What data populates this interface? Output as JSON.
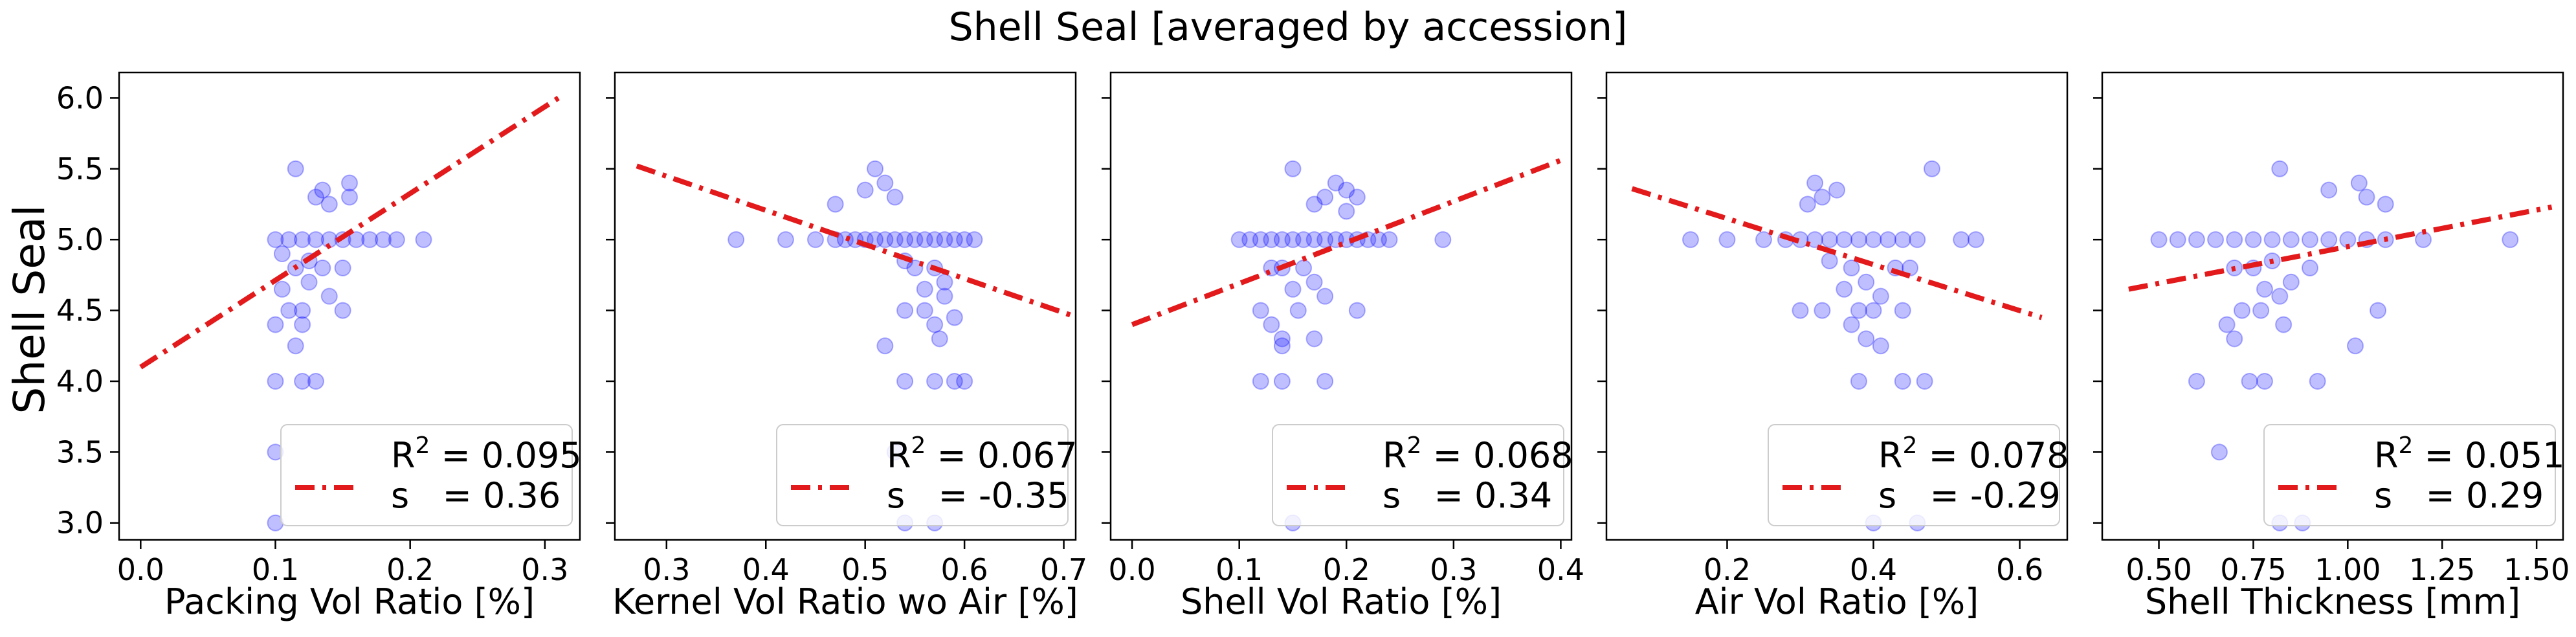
{
  "chart_data": {
    "title": "Shell Seal [averaged by accession]",
    "ylabel": "Shell Seal",
    "ylim": [
      2.88,
      6.18
    ],
    "yticks": [
      3.0,
      3.5,
      4.0,
      4.5,
      5.0,
      5.5,
      6.0
    ],
    "ytick_labels": [
      "3.0",
      "3.5",
      "4.0",
      "4.5",
      "5.0",
      "5.5",
      "6.0"
    ],
    "point_color": "#0000ff",
    "line_color": "#e31a1c",
    "panels": [
      {
        "type": "scatter",
        "xlabel": "Packing Vol Ratio [%]",
        "xlim": [
          -0.016,
          0.326
        ],
        "xticks": [
          0.0,
          0.1,
          0.2,
          0.3
        ],
        "xtick_labels": [
          "0.0",
          "0.1",
          "0.2",
          "0.3"
        ],
        "points": [
          [
            0.1,
            5.0
          ],
          [
            0.11,
            5.0
          ],
          [
            0.12,
            5.0
          ],
          [
            0.13,
            5.0
          ],
          [
            0.14,
            5.0
          ],
          [
            0.15,
            5.0
          ],
          [
            0.16,
            5.0
          ],
          [
            0.17,
            5.0
          ],
          [
            0.18,
            5.0
          ],
          [
            0.19,
            5.0
          ],
          [
            0.21,
            5.0
          ],
          [
            0.115,
            5.5
          ],
          [
            0.155,
            5.4
          ],
          [
            0.155,
            5.3
          ],
          [
            0.135,
            5.35
          ],
          [
            0.14,
            5.25
          ],
          [
            0.13,
            5.3
          ],
          [
            0.105,
            4.9
          ],
          [
            0.125,
            4.85
          ],
          [
            0.135,
            4.8
          ],
          [
            0.115,
            4.8
          ],
          [
            0.15,
            4.8
          ],
          [
            0.105,
            4.65
          ],
          [
            0.125,
            4.7
          ],
          [
            0.14,
            4.6
          ],
          [
            0.11,
            4.5
          ],
          [
            0.12,
            4.5
          ],
          [
            0.15,
            4.5
          ],
          [
            0.12,
            4.4
          ],
          [
            0.1,
            4.4
          ],
          [
            0.115,
            4.25
          ],
          [
            0.1,
            4.0
          ],
          [
            0.12,
            4.0
          ],
          [
            0.13,
            4.0
          ],
          [
            0.1,
            3.5
          ],
          [
            0.1,
            3.0
          ]
        ],
        "fit": [
          [
            0.0,
            4.1
          ],
          [
            0.31,
            6.0
          ]
        ],
        "legend": {
          "r2_text": "= 0.095",
          "s_text": "s   = 0.36"
        }
      },
      {
        "type": "scatter",
        "xlabel": "Kernel Vol Ratio wo Air [%]",
        "xlim": [
          0.248,
          0.712
        ],
        "xticks": [
          0.3,
          0.4,
          0.5,
          0.6,
          0.7
        ],
        "xtick_labels": [
          "0.3",
          "0.4",
          "0.5",
          "0.6",
          "0.7"
        ],
        "points": [
          [
            0.37,
            5.0
          ],
          [
            0.42,
            5.0
          ],
          [
            0.45,
            5.0
          ],
          [
            0.47,
            5.0
          ],
          [
            0.48,
            5.0
          ],
          [
            0.49,
            5.0
          ],
          [
            0.5,
            5.0
          ],
          [
            0.51,
            5.0
          ],
          [
            0.52,
            5.0
          ],
          [
            0.53,
            5.0
          ],
          [
            0.54,
            5.0
          ],
          [
            0.55,
            5.0
          ],
          [
            0.56,
            5.0
          ],
          [
            0.57,
            5.0
          ],
          [
            0.58,
            5.0
          ],
          [
            0.59,
            5.0
          ],
          [
            0.6,
            5.0
          ],
          [
            0.61,
            5.0
          ],
          [
            0.51,
            5.5
          ],
          [
            0.52,
            5.4
          ],
          [
            0.53,
            5.3
          ],
          [
            0.5,
            5.35
          ],
          [
            0.47,
            5.25
          ],
          [
            0.54,
            4.85
          ],
          [
            0.55,
            4.8
          ],
          [
            0.57,
            4.8
          ],
          [
            0.58,
            4.7
          ],
          [
            0.56,
            4.65
          ],
          [
            0.58,
            4.6
          ],
          [
            0.54,
            4.5
          ],
          [
            0.56,
            4.5
          ],
          [
            0.59,
            4.45
          ],
          [
            0.57,
            4.4
          ],
          [
            0.52,
            4.25
          ],
          [
            0.575,
            4.3
          ],
          [
            0.54,
            4.0
          ],
          [
            0.57,
            4.0
          ],
          [
            0.59,
            4.0
          ],
          [
            0.6,
            4.0
          ],
          [
            0.53,
            3.5
          ],
          [
            0.54,
            3.0
          ],
          [
            0.57,
            3.0
          ]
        ],
        "fit": [
          [
            0.27,
            5.52
          ],
          [
            0.71,
            4.46
          ]
        ],
        "legend": {
          "r2_text": "= 0.067",
          "s_text": "s   = -0.35"
        }
      },
      {
        "type": "scatter",
        "xlabel": "Shell Vol Ratio [%]",
        "xlim": [
          -0.02,
          0.41
        ],
        "xticks": [
          0.0,
          0.1,
          0.2,
          0.3,
          0.4
        ],
        "xtick_labels": [
          "0.0",
          "0.1",
          "0.2",
          "0.3",
          "0.4"
        ],
        "points": [
          [
            0.1,
            5.0
          ],
          [
            0.11,
            5.0
          ],
          [
            0.12,
            5.0
          ],
          [
            0.13,
            5.0
          ],
          [
            0.14,
            5.0
          ],
          [
            0.15,
            5.0
          ],
          [
            0.16,
            5.0
          ],
          [
            0.17,
            5.0
          ],
          [
            0.18,
            5.0
          ],
          [
            0.19,
            5.0
          ],
          [
            0.2,
            5.0
          ],
          [
            0.21,
            5.0
          ],
          [
            0.22,
            5.0
          ],
          [
            0.23,
            5.0
          ],
          [
            0.24,
            5.0
          ],
          [
            0.29,
            5.0
          ],
          [
            0.15,
            5.5
          ],
          [
            0.19,
            5.4
          ],
          [
            0.18,
            5.3
          ],
          [
            0.2,
            5.35
          ],
          [
            0.21,
            5.3
          ],
          [
            0.17,
            5.25
          ],
          [
            0.2,
            5.2
          ],
          [
            0.13,
            4.8
          ],
          [
            0.14,
            4.8
          ],
          [
            0.16,
            4.8
          ],
          [
            0.17,
            4.7
          ],
          [
            0.15,
            4.65
          ],
          [
            0.18,
            4.6
          ],
          [
            0.12,
            4.5
          ],
          [
            0.155,
            4.5
          ],
          [
            0.21,
            4.5
          ],
          [
            0.13,
            4.4
          ],
          [
            0.14,
            4.3
          ],
          [
            0.14,
            4.25
          ],
          [
            0.17,
            4.3
          ],
          [
            0.12,
            4.0
          ],
          [
            0.14,
            4.0
          ],
          [
            0.18,
            4.0
          ],
          [
            0.15,
            3.0
          ]
        ],
        "fit": [
          [
            0.0,
            4.4
          ],
          [
            0.4,
            5.56
          ]
        ],
        "legend": {
          "r2_text": "= 0.068",
          "s_text": "s   = 0.34"
        }
      },
      {
        "type": "scatter",
        "xlabel": "Air Vol Ratio [%]",
        "xlim": [
          0.035,
          0.665
        ],
        "xticks": [
          0.2,
          0.4,
          0.6
        ],
        "xtick_labels": [
          "0.2",
          "0.4",
          "0.6"
        ],
        "points": [
          [
            0.15,
            5.0
          ],
          [
            0.2,
            5.0
          ],
          [
            0.25,
            5.0
          ],
          [
            0.28,
            5.0
          ],
          [
            0.3,
            5.0
          ],
          [
            0.32,
            5.0
          ],
          [
            0.34,
            5.0
          ],
          [
            0.36,
            5.0
          ],
          [
            0.38,
            5.0
          ],
          [
            0.4,
            5.0
          ],
          [
            0.42,
            5.0
          ],
          [
            0.44,
            5.0
          ],
          [
            0.46,
            5.0
          ],
          [
            0.52,
            5.0
          ],
          [
            0.54,
            5.0
          ],
          [
            0.32,
            5.4
          ],
          [
            0.33,
            5.3
          ],
          [
            0.35,
            5.35
          ],
          [
            0.31,
            5.25
          ],
          [
            0.48,
            5.5
          ],
          [
            0.34,
            4.85
          ],
          [
            0.37,
            4.8
          ],
          [
            0.43,
            4.8
          ],
          [
            0.45,
            4.8
          ],
          [
            0.39,
            4.7
          ],
          [
            0.36,
            4.65
          ],
          [
            0.41,
            4.6
          ],
          [
            0.3,
            4.5
          ],
          [
            0.33,
            4.5
          ],
          [
            0.38,
            4.5
          ],
          [
            0.4,
            4.5
          ],
          [
            0.44,
            4.5
          ],
          [
            0.37,
            4.4
          ],
          [
            0.39,
            4.3
          ],
          [
            0.41,
            4.25
          ],
          [
            0.38,
            4.0
          ],
          [
            0.44,
            4.0
          ],
          [
            0.47,
            4.0
          ],
          [
            0.4,
            3.0
          ],
          [
            0.46,
            3.0
          ]
        ],
        "fit": [
          [
            0.07,
            5.36
          ],
          [
            0.63,
            4.45
          ]
        ],
        "legend": {
          "r2_text": "= 0.078",
          "s_text": "s   = -0.29"
        }
      },
      {
        "type": "scatter",
        "xlabel": "Shell Thickness [mm]",
        "xlim": [
          0.35,
          1.57
        ],
        "xticks": [
          0.5,
          0.75,
          1.0,
          1.25,
          1.5
        ],
        "xtick_labels": [
          "0.50",
          "0.75",
          "1.00",
          "1.25",
          "1.50"
        ],
        "points": [
          [
            0.5,
            5.0
          ],
          [
            0.55,
            5.0
          ],
          [
            0.6,
            5.0
          ],
          [
            0.65,
            5.0
          ],
          [
            0.7,
            5.0
          ],
          [
            0.75,
            5.0
          ],
          [
            0.8,
            5.0
          ],
          [
            0.85,
            5.0
          ],
          [
            0.9,
            5.0
          ],
          [
            0.95,
            5.0
          ],
          [
            1.0,
            5.0
          ],
          [
            1.05,
            5.0
          ],
          [
            1.1,
            5.0
          ],
          [
            1.2,
            5.0
          ],
          [
            1.43,
            5.0
          ],
          [
            0.82,
            5.5
          ],
          [
            1.03,
            5.4
          ],
          [
            0.95,
            5.35
          ],
          [
            1.05,
            5.3
          ],
          [
            1.1,
            5.25
          ],
          [
            0.8,
            4.85
          ],
          [
            0.7,
            4.8
          ],
          [
            0.75,
            4.8
          ],
          [
            0.85,
            4.7
          ],
          [
            0.9,
            4.8
          ],
          [
            0.78,
            4.65
          ],
          [
            0.82,
            4.6
          ],
          [
            0.72,
            4.5
          ],
          [
            0.77,
            4.5
          ],
          [
            1.08,
            4.5
          ],
          [
            0.68,
            4.4
          ],
          [
            0.83,
            4.4
          ],
          [
            0.7,
            4.3
          ],
          [
            1.02,
            4.25
          ],
          [
            0.6,
            4.0
          ],
          [
            0.74,
            4.0
          ],
          [
            0.78,
            4.0
          ],
          [
            0.92,
            4.0
          ],
          [
            0.66,
            3.5
          ],
          [
            0.82,
            3.0
          ],
          [
            0.88,
            3.0
          ]
        ],
        "fit": [
          [
            0.42,
            4.65
          ],
          [
            1.54,
            5.23
          ]
        ],
        "legend": {
          "r2_text": "= 0.051",
          "s_text": "s   = 0.29"
        }
      }
    ]
  },
  "legend_r2_label": "R",
  "legend_r2_sup": "2"
}
